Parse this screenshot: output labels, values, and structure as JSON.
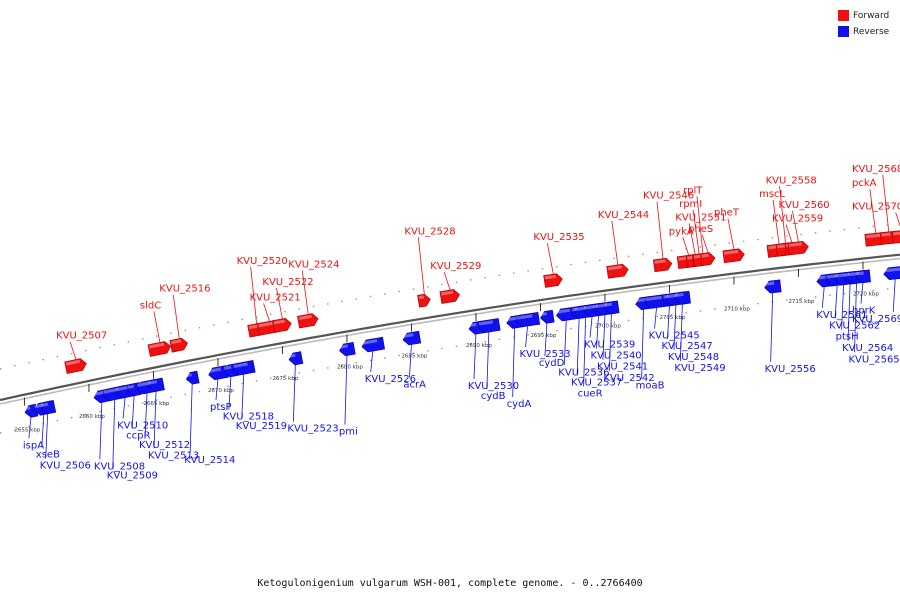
{
  "colors": {
    "forward": "#ee1111",
    "reverse": "#1111ee",
    "track": "#999999",
    "line": "#444444"
  },
  "legend": [
    {
      "key": "forward",
      "label": "Forward"
    },
    {
      "key": "reverse",
      "label": "Reverse"
    }
  ],
  "caption": "Ketogulonigenium vulgarum WSH-001, complete genome. - 0..2766400",
  "scale": {
    "ticks": [
      {
        "label": "2655 kbp",
        "kbp": 2655
      },
      {
        "label": "2660 kbp",
        "kbp": 2660
      },
      {
        "label": "2665 kbp",
        "kbp": 2665
      },
      {
        "label": "2670 kbp",
        "kbp": 2670
      },
      {
        "label": "2675 kbp",
        "kbp": 2675
      },
      {
        "label": "2680 kbp",
        "kbp": 2680
      },
      {
        "label": "2685 kbp",
        "kbp": 2685
      },
      {
        "label": "2690 kbp",
        "kbp": 2690
      },
      {
        "label": "2695 kbp",
        "kbp": 2695
      },
      {
        "label": "2700 kbp",
        "kbp": 2700
      },
      {
        "label": "2705 kbp",
        "kbp": 2705
      },
      {
        "label": "2710 kbp",
        "kbp": 2710
      },
      {
        "label": "2715 kbp",
        "kbp": 2715
      },
      {
        "label": "2720 kbp",
        "kbp": 2720
      }
    ]
  },
  "genes": [
    {
      "label": "ispA",
      "strand": "reverse",
      "kbp": 2655.5
    },
    {
      "label": "xseB",
      "strand": "reverse",
      "kbp": 2656.5
    },
    {
      "label": "KVU_2506",
      "strand": "reverse",
      "kbp": 2656.8
    },
    {
      "label": "KVU_2507",
      "strand": "forward",
      "kbp": 2659.0
    },
    {
      "label": "KVU_2508",
      "strand": "reverse",
      "kbp": 2661.0
    },
    {
      "label": "KVU_2509",
      "strand": "reverse",
      "kbp": 2662.0
    },
    {
      "label": "KVU_2510",
      "strand": "reverse",
      "kbp": 2662.8
    },
    {
      "label": "ccpR",
      "strand": "reverse",
      "kbp": 2663.5
    },
    {
      "label": "KVU_2512",
      "strand": "reverse",
      "kbp": 2664.5
    },
    {
      "label": "KVU_2513",
      "strand": "reverse",
      "kbp": 2665.2
    },
    {
      "label": "sldC",
      "strand": "forward",
      "kbp": 2665.5
    },
    {
      "label": "KVU_2516",
      "strand": "forward",
      "kbp": 2667.0
    },
    {
      "label": "KVU_2514",
      "strand": "reverse",
      "kbp": 2668.0
    },
    {
      "label": "ptsP",
      "strand": "reverse",
      "kbp": 2670.0
    },
    {
      "label": "KVU_2518",
      "strand": "reverse",
      "kbp": 2671.0
    },
    {
      "label": "KVU_2519",
      "strand": "reverse",
      "kbp": 2672.0
    },
    {
      "label": "KVU_2520",
      "strand": "forward",
      "kbp": 2673.0
    },
    {
      "label": "KVU_2521",
      "strand": "forward",
      "kbp": 2674.0
    },
    {
      "label": "KVU_2522",
      "strand": "forward",
      "kbp": 2675.0
    },
    {
      "label": "KVU_2523",
      "strand": "reverse",
      "kbp": 2676.0
    },
    {
      "label": "KVU_2524",
      "strand": "forward",
      "kbp": 2677.0
    },
    {
      "label": "pmi",
      "strand": "reverse",
      "kbp": 2680.0
    },
    {
      "label": "KVU_2526",
      "strand": "reverse",
      "kbp": 2682.0
    },
    {
      "label": "acrA",
      "strand": "reverse",
      "kbp": 2685.0
    },
    {
      "label": "KVU_2528",
      "strand": "forward",
      "kbp": 2686.0
    },
    {
      "label": "KVU_2529",
      "strand": "forward",
      "kbp": 2688.0
    },
    {
      "label": "KVU_2530",
      "strand": "reverse",
      "kbp": 2690.0
    },
    {
      "label": "cydB",
      "strand": "reverse",
      "kbp": 2691.0
    },
    {
      "label": "cydA",
      "strand": "reverse",
      "kbp": 2693.0
    },
    {
      "label": "KVU_2533",
      "strand": "reverse",
      "kbp": 2694.0
    },
    {
      "label": "KVU_2535",
      "strand": "forward",
      "kbp": 2696.0
    },
    {
      "label": "cydD",
      "strand": "reverse",
      "kbp": 2695.5
    },
    {
      "label": "KVU_2536",
      "strand": "reverse",
      "kbp": 2697.0
    },
    {
      "label": "KVU_2537",
      "strand": "reverse",
      "kbp": 2698.0
    },
    {
      "label": "cueR",
      "strand": "reverse",
      "kbp": 2698.5
    },
    {
      "label": "KVU_2539",
      "strand": "reverse",
      "kbp": 2699.0
    },
    {
      "label": "KVU_2540",
      "strand": "reverse",
      "kbp": 2699.5
    },
    {
      "label": "KVU_2541",
      "strand": "reverse",
      "kbp": 2700.0
    },
    {
      "label": "KVU_2542",
      "strand": "reverse",
      "kbp": 2700.5
    },
    {
      "label": "KVU_2544",
      "strand": "forward",
      "kbp": 2701.0
    },
    {
      "label": "moaB",
      "strand": "reverse",
      "kbp": 2703.0
    },
    {
      "label": "KVU_2545",
      "strand": "reverse",
      "kbp": 2704.0
    },
    {
      "label": "KVU_2546",
      "strand": "forward",
      "kbp": 2704.5
    },
    {
      "label": "KVU_2547",
      "strand": "reverse",
      "kbp": 2705.0
    },
    {
      "label": "KVU_2548",
      "strand": "reverse",
      "kbp": 2705.5
    },
    {
      "label": "KVU_2549",
      "strand": "reverse",
      "kbp": 2706.0
    },
    {
      "label": "pykA",
      "strand": "forward",
      "kbp": 2706.5
    },
    {
      "label": "KVU_2551",
      "strand": "forward",
      "kbp": 2707.0
    },
    {
      "label": "rpmI",
      "strand": "forward",
      "kbp": 2707.3
    },
    {
      "label": "rplT",
      "strand": "forward",
      "kbp": 2707.6
    },
    {
      "label": "pheS",
      "strand": "forward",
      "kbp": 2708.0
    },
    {
      "label": "pheT",
      "strand": "forward",
      "kbp": 2710.0
    },
    {
      "label": "KVU_2556",
      "strand": "reverse",
      "kbp": 2713.0
    },
    {
      "label": "mscL",
      "strand": "forward",
      "kbp": 2713.5
    },
    {
      "label": "KVU_2558",
      "strand": "forward",
      "kbp": 2714.0
    },
    {
      "label": "KVU_2559",
      "strand": "forward",
      "kbp": 2714.5
    },
    {
      "label": "KVU_2560",
      "strand": "forward",
      "kbp": 2715.0
    },
    {
      "label": "KVU_2561",
      "strand": "reverse",
      "kbp": 2717.0
    },
    {
      "label": "KVU_2562",
      "strand": "reverse",
      "kbp": 2718.0
    },
    {
      "label": "ptsH",
      "strand": "reverse",
      "kbp": 2718.5
    },
    {
      "label": "KVU_2564",
      "strand": "reverse",
      "kbp": 2719.0
    },
    {
      "label": "KVU_2565",
      "strand": "reverse",
      "kbp": 2719.5
    },
    {
      "label": "hprK",
      "strand": "reverse",
      "kbp": 2720.0
    },
    {
      "label": "pckA",
      "strand": "forward",
      "kbp": 2721.0
    },
    {
      "label": "KVU_2568",
      "strand": "forward",
      "kbp": 2722.0
    },
    {
      "label": "KVU_2569",
      "strand": "reverse",
      "kbp": 2722.5
    },
    {
      "label": "KVU_2570",
      "strand": "forward",
      "kbp": 2723.0
    }
  ]
}
